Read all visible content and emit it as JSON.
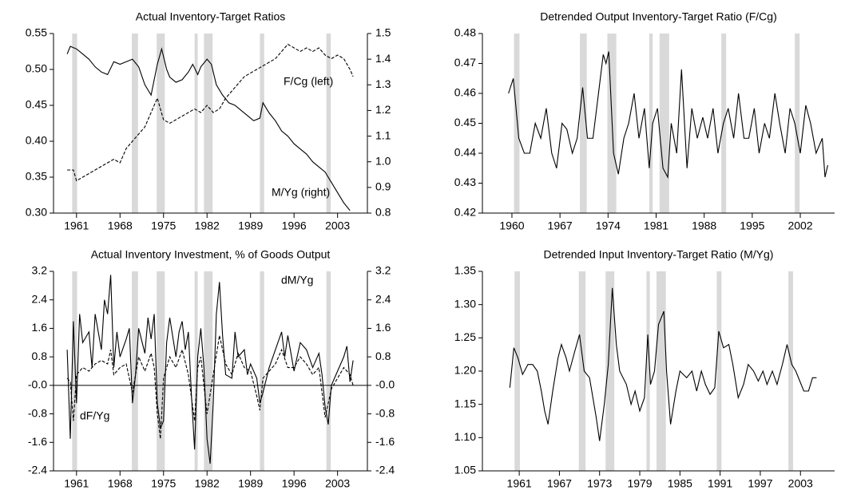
{
  "chart_data": [
    {
      "type": "line",
      "title": "Actual Inventory-Target Ratios",
      "xlim": [
        1957.3,
        2007.8
      ],
      "xticks": [
        1961,
        1968,
        1975,
        1982,
        1989,
        1996,
        2003
      ],
      "ylim": [
        0.3,
        0.55
      ],
      "yticks": [
        {
          "value": 0.3,
          "label": "0.30"
        },
        0.35,
        {
          "value": 0.4,
          "label": "0.40"
        },
        0.45,
        {
          "value": 0.5,
          "label": "0.50"
        },
        0.55
      ],
      "y2lim": [
        0.8,
        1.5
      ],
      "y2ticks": [
        0.8,
        0.9,
        {
          "value": 1,
          "label": "1.0"
        },
        1.1,
        1.2,
        1.3,
        1.4,
        1.5
      ],
      "shaded_periods": [
        [
          1960.3,
          1961.1
        ],
        [
          1969.9,
          1970.9
        ],
        [
          1973.9,
          1975.2
        ],
        [
          1980,
          1980.5
        ],
        [
          1981.5,
          1982.9
        ],
        [
          1990.5,
          1991.2
        ],
        [
          2001.2,
          2001.9
        ]
      ],
      "series_labels": true,
      "series": [
        {
          "name": "F/Cg (left)",
          "color": "#000000",
          "dashed": true,
          "x": [
            1959.5,
            1960.5,
            1961,
            1962,
            1963,
            1964,
            1965,
            1966,
            1967,
            1968,
            1969,
            1970,
            1971,
            1972,
            1973,
            1974,
            1975,
            1976,
            1977,
            1978,
            1979,
            1980,
            1981,
            1982,
            1983,
            1984,
            1985,
            1986,
            1987,
            1988,
            1989,
            1990,
            1991,
            1992,
            1993,
            1994,
            1995,
            1996,
            1997,
            1998,
            1999,
            2000,
            2001,
            2002,
            2003,
            2004,
            2005,
            2005.5
          ],
          "values": [
            0.36,
            0.36,
            0.345,
            0.35,
            0.355,
            0.36,
            0.365,
            0.37,
            0.375,
            0.37,
            0.39,
            0.4,
            0.41,
            0.42,
            0.44,
            0.46,
            0.43,
            0.425,
            0.43,
            0.435,
            0.44,
            0.445,
            0.44,
            0.45,
            0.44,
            0.445,
            0.46,
            0.47,
            0.48,
            0.49,
            0.495,
            0.5,
            0.505,
            0.51,
            0.515,
            0.525,
            0.535,
            0.53,
            0.525,
            0.53,
            0.525,
            0.53,
            0.52,
            0.515,
            0.52,
            0.515,
            0.5,
            0.49
          ]
        },
        {
          "name": "M/Yg (right)",
          "color": "#000000",
          "dashed": false,
          "axis": "y2",
          "x": [
            1959.5,
            1960,
            1961,
            1962,
            1963,
            1964,
            1965,
            1966,
            1967,
            1968,
            1969,
            1970,
            1971,
            1972,
            1973,
            1974,
            1974.7,
            1975.5,
            1976,
            1977,
            1978,
            1979,
            1979.7,
            1980.5,
            1981,
            1982,
            1982.7,
            1983.5,
            1984.5,
            1985.5,
            1986.5,
            1987.5,
            1988.5,
            1989.5,
            1990.5,
            1991,
            1992,
            1993,
            1994,
            1995,
            1996,
            1997,
            1998,
            1999,
            2000,
            2001,
            2002,
            2003,
            2004,
            2005
          ],
          "values": [
            1.42,
            1.45,
            1.44,
            1.42,
            1.4,
            1.37,
            1.35,
            1.34,
            1.39,
            1.38,
            1.39,
            1.4,
            1.37,
            1.3,
            1.26,
            1.38,
            1.44,
            1.36,
            1.33,
            1.31,
            1.32,
            1.35,
            1.38,
            1.34,
            1.37,
            1.4,
            1.38,
            1.3,
            1.26,
            1.23,
            1.22,
            1.2,
            1.18,
            1.16,
            1.17,
            1.23,
            1.19,
            1.16,
            1.12,
            1.1,
            1.07,
            1.05,
            1.03,
            1,
            0.98,
            0.96,
            0.92,
            0.88,
            0.84,
            0.81
          ]
        }
      ]
    },
    {
      "type": "line",
      "title": "Detrended Output Inventory-Target Ratio (F/Cg)",
      "xlim": [
        1955.7,
        2007
      ],
      "xticks": [
        1960,
        1967,
        1974,
        1981,
        1988,
        1995,
        2002
      ],
      "ylim": [
        0.42,
        0.48
      ],
      "yticks": [
        0.42,
        0.43,
        0.44,
        0.45,
        0.46,
        0.47,
        0.48
      ],
      "shaded_periods": [
        [
          1960.3,
          1961.1
        ],
        [
          1969.9,
          1970.9
        ],
        [
          1973.9,
          1975.2
        ],
        [
          1980,
          1980.5
        ],
        [
          1981.5,
          1982.9
        ],
        [
          1990.5,
          1991.2
        ],
        [
          2001.2,
          2001.9
        ]
      ],
      "series": [
        {
          "name": "F/Cg",
          "color": "#000000",
          "dashed": false,
          "x": [
            1959.5,
            1960.2,
            1961,
            1961.8,
            1962.6,
            1963.4,
            1964.2,
            1965,
            1965.8,
            1966.5,
            1967.3,
            1968,
            1968.8,
            1969.5,
            1970.3,
            1971,
            1971.8,
            1972.5,
            1973.3,
            1973.7,
            1974.1,
            1974.8,
            1975.5,
            1976.3,
            1977,
            1977.8,
            1978.5,
            1979.3,
            1980,
            1980.5,
            1981.2,
            1982,
            1982.7,
            1983.2,
            1984,
            1984.7,
            1985.5,
            1986.2,
            1987,
            1987.8,
            1988.5,
            1989.3,
            1990,
            1990.8,
            1991.5,
            1992.3,
            1993,
            1993.8,
            1994.5,
            1995.3,
            1996,
            1996.8,
            1997.5,
            1998.3,
            1999,
            1999.8,
            2000.5,
            2001.2,
            2002,
            2002.8,
            2003.5,
            2004.3,
            2005.2,
            2005.6,
            2006
          ],
          "values": [
            0.46,
            0.465,
            0.445,
            0.44,
            0.44,
            0.45,
            0.445,
            0.455,
            0.44,
            0.435,
            0.45,
            0.448,
            0.44,
            0.445,
            0.462,
            0.445,
            0.445,
            0.458,
            0.473,
            0.47,
            0.474,
            0.44,
            0.433,
            0.445,
            0.45,
            0.46,
            0.445,
            0.455,
            0.435,
            0.45,
            0.455,
            0.435,
            0.432,
            0.45,
            0.44,
            0.468,
            0.435,
            0.455,
            0.445,
            0.452,
            0.445,
            0.455,
            0.44,
            0.45,
            0.455,
            0.445,
            0.46,
            0.445,
            0.445,
            0.455,
            0.44,
            0.45,
            0.445,
            0.46,
            0.45,
            0.44,
            0.455,
            0.45,
            0.44,
            0.456,
            0.45,
            0.44,
            0.445,
            0.432,
            0.436
          ]
        }
      ]
    },
    {
      "type": "line",
      "title": "Actual Inventory Investment, % of Goods Output",
      "xlim": [
        1957.3,
        2007.8
      ],
      "xticks": [
        1961,
        1968,
        1975,
        1982,
        1989,
        1996,
        2003
      ],
      "ylim": [
        -2.4,
        3.2
      ],
      "yticks": [
        -2.4,
        -1.6,
        -0.8,
        {
          "value": 0,
          "label": "-0.0"
        },
        0.8,
        1.6,
        2.4,
        3.2
      ],
      "y2lim": [
        -2.4,
        3.2
      ],
      "y2ticks": [
        -2.4,
        -1.6,
        -0.8,
        {
          "value": 0,
          "label": "-0.0"
        },
        0.8,
        1.6,
        2.4,
        3.2
      ],
      "zero_line": true,
      "series_labels": true,
      "shaded_periods": [
        [
          1960.3,
          1961.1
        ],
        [
          1969.9,
          1970.9
        ],
        [
          1973.9,
          1975.2
        ],
        [
          1980,
          1980.5
        ],
        [
          1981.5,
          1982.9
        ],
        [
          1990.5,
          1991.2
        ],
        [
          2001.2,
          2001.9
        ]
      ],
      "series": [
        {
          "name": "dM/Yg",
          "color": "#000000",
          "dashed": false,
          "x": [
            1959.5,
            1960,
            1960.5,
            1961,
            1961.5,
            1962,
            1963,
            1963.5,
            1964,
            1965,
            1965.5,
            1966,
            1966.5,
            1967,
            1967.5,
            1968,
            1969,
            1969.5,
            1970,
            1970.5,
            1971,
            1972,
            1972.5,
            1973,
            1973.5,
            1974,
            1974.5,
            1975,
            1975.5,
            1976,
            1977,
            1977.5,
            1978,
            1978.5,
            1979,
            1979.5,
            1980,
            1980.5,
            1981,
            1981.5,
            1982,
            1982.5,
            1983,
            1983.5,
            1984,
            1984.5,
            1985,
            1986,
            1986.5,
            1987,
            1988,
            1988.5,
            1989,
            1990,
            1990.5,
            1991,
            1992,
            1993,
            1994,
            1994.5,
            1995,
            1996,
            1997,
            1998,
            1999,
            2000,
            2000.5,
            2001,
            2001.5,
            2002,
            2003,
            2004,
            2004.5,
            2005,
            2005.5
          ],
          "values": [
            1,
            -1.5,
            1.8,
            -0.5,
            2,
            1.2,
            1.5,
            0.5,
            2,
            1,
            2.4,
            2,
            3.1,
            0.5,
            1.5,
            0.8,
            1.3,
            1.6,
            -0.5,
            0.3,
            1.6,
            0.9,
            1.9,
            1.3,
            2,
            -0.5,
            -1.2,
            -1,
            1.2,
            1.9,
            0.8,
            1.5,
            1.8,
            1,
            1.5,
            -0.3,
            -1.8,
            0.8,
            1.6,
            0.5,
            -1.5,
            -2.2,
            -0.5,
            2,
            2.9,
            1.4,
            0.3,
            0.2,
            1.5,
            0.8,
            1,
            0.3,
            0.6,
            0.2,
            -0.5,
            -0.2,
            0.5,
            1,
            1.5,
            0.8,
            1.4,
            0.4,
            1.2,
            1,
            0.5,
            0.9,
            0.3,
            -0.6,
            -1.1,
            0,
            0.4,
            0.8,
            1.1,
            0.1,
            0.7
          ]
        },
        {
          "name": "dF/Yg",
          "color": "#000000",
          "dashed": true,
          "x": [
            1959.5,
            1960,
            1960.5,
            1961,
            1962,
            1963,
            1964,
            1965,
            1966,
            1966.5,
            1967,
            1968,
            1969,
            1970,
            1971,
            1972,
            1973,
            1973.5,
            1974,
            1974.5,
            1975,
            1976,
            1977,
            1978,
            1979,
            1980,
            1980.5,
            1981,
            1982,
            1983,
            1984,
            1985,
            1986,
            1987,
            1988,
            1989,
            1990,
            1990.5,
            1991,
            1992,
            1993,
            1994,
            1995,
            1996,
            1997,
            1998,
            1999,
            2000,
            2001,
            2002,
            2003,
            2004,
            2005,
            2005.5
          ],
          "values": [
            0.2,
            0.1,
            -1,
            0.3,
            0.5,
            0.4,
            0.6,
            0.7,
            0.6,
            1,
            0.3,
            0.5,
            0.6,
            -0.2,
            0.8,
            0.4,
            0.9,
            0.5,
            -0.8,
            -1.5,
            0.2,
            0.8,
            0.5,
            1,
            0.3,
            -1,
            0.5,
            0.8,
            -0.8,
            0.3,
            1.4,
            0.6,
            0.3,
            0.9,
            0.5,
            0.4,
            -0.3,
            -0.7,
            0.2,
            0.4,
            0.6,
            1,
            0.5,
            0.5,
            0.8,
            0.6,
            0.3,
            0.5,
            -0.9,
            -0.1,
            0.2,
            0.5,
            0.3,
            0
          ]
        }
      ]
    },
    {
      "type": "line",
      "title": "Detrended Input Inventory-Target Ratio (M/Yg)",
      "xlim": [
        1955.5,
        2008.1
      ],
      "xticks": [
        1961,
        1967,
        1973,
        1979,
        1985,
        1991,
        1997,
        2003
      ],
      "ylim": [
        1.05,
        1.35
      ],
      "yticks": [
        1.05,
        {
          "value": 1.1,
          "label": "1.10"
        },
        1.15,
        {
          "value": 1.2,
          "label": "1.20"
        },
        1.25,
        {
          "value": 1.3,
          "label": "1.30"
        },
        1.35
      ],
      "shaded_periods": [
        [
          1960.3,
          1961.1
        ],
        [
          1969.9,
          1970.9
        ],
        [
          1973.9,
          1975.2
        ],
        [
          1980,
          1980.5
        ],
        [
          1981.5,
          1982.9
        ],
        [
          1990.5,
          1991.2
        ],
        [
          2001.2,
          2001.9
        ]
      ],
      "series": [
        {
          "name": "M/Yg",
          "color": "#000000",
          "dashed": false,
          "x": [
            1959.6,
            1960.2,
            1960.8,
            1961.5,
            1962.3,
            1963,
            1963.7,
            1964.3,
            1964.8,
            1965.3,
            1966,
            1966.8,
            1967.3,
            1968,
            1968.5,
            1969.3,
            1970,
            1970.7,
            1971.5,
            1972,
            1972.5,
            1973,
            1973.7,
            1974.3,
            1974.9,
            1975.5,
            1976,
            1977,
            1977.7,
            1978.3,
            1979,
            1979.7,
            1980.2,
            1980.6,
            1981.2,
            1981.8,
            1982.6,
            1983,
            1983.6,
            1984.4,
            1985,
            1986,
            1986.8,
            1987.5,
            1988.2,
            1988.8,
            1989.5,
            1990.2,
            1990.8,
            1991.5,
            1992.3,
            1992.9,
            1993.7,
            1994.5,
            1995.2,
            1996,
            1996.7,
            1997.4,
            1998,
            1998.8,
            1999.5,
            2000.3,
            2001,
            2001.7,
            2002.3,
            2002.9,
            2003.5,
            2004.2,
            2004.8,
            2005.4
          ],
          "values": [
            1.175,
            1.235,
            1.22,
            1.195,
            1.21,
            1.21,
            1.2,
            1.17,
            1.14,
            1.12,
            1.17,
            1.22,
            1.24,
            1.22,
            1.2,
            1.23,
            1.255,
            1.2,
            1.19,
            1.16,
            1.13,
            1.095,
            1.15,
            1.21,
            1.325,
            1.24,
            1.2,
            1.18,
            1.15,
            1.17,
            1.14,
            1.16,
            1.255,
            1.18,
            1.2,
            1.27,
            1.29,
            1.2,
            1.12,
            1.17,
            1.2,
            1.19,
            1.2,
            1.17,
            1.2,
            1.18,
            1.165,
            1.175,
            1.26,
            1.235,
            1.24,
            1.21,
            1.16,
            1.18,
            1.21,
            1.2,
            1.185,
            1.2,
            1.18,
            1.2,
            1.18,
            1.21,
            1.24,
            1.21,
            1.2,
            1.185,
            1.17,
            1.17,
            1.19,
            1.19
          ]
        }
      ]
    }
  ]
}
